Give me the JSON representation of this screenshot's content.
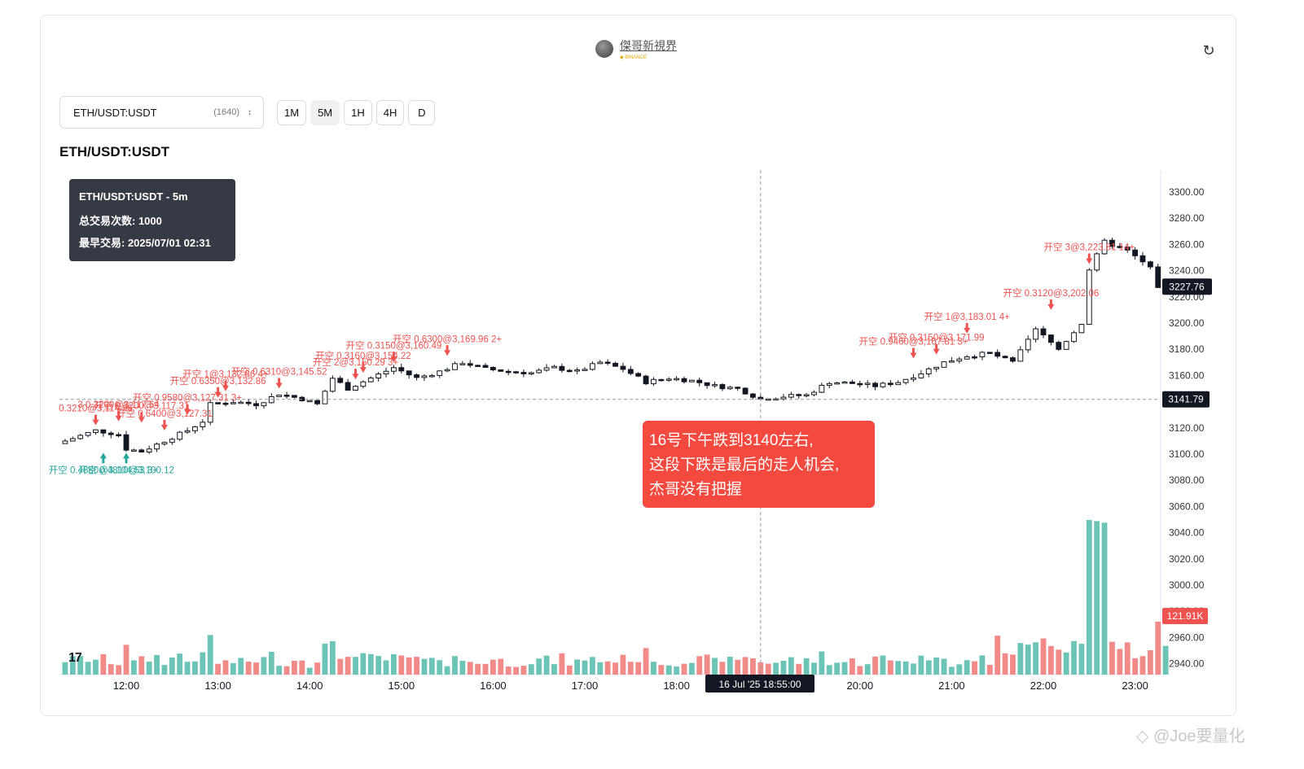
{
  "author": {
    "name": "傑哥新視界",
    "sub": "◆ BINANCE"
  },
  "refresh_icon": "refresh-icon",
  "symbol_select": {
    "value": "ETH/USDT:USDT",
    "count": "(1640)"
  },
  "timeframes": [
    {
      "label": "1M",
      "active": false
    },
    {
      "label": "5M",
      "active": true
    },
    {
      "label": "1H",
      "active": false
    },
    {
      "label": "4H",
      "active": false
    },
    {
      "label": "D",
      "active": false
    }
  ],
  "title": "ETH/USDT:USDT",
  "info_box": {
    "line1": "ETH/USDT:USDT - 5m",
    "line2": "总交易次数: 1000",
    "line3": "最早交易: 2025/07/01 02:31"
  },
  "annotation": "16号下午跌到3140左右,\n这段下跌是最后的走人机会,\n杰哥没有把握",
  "watermark": "◇ @Joe要量化",
  "tv_logo": "17",
  "colors": {
    "up": "#26a69a",
    "down": "#ef5350",
    "vol_up": "#6cc4b6",
    "vol_down": "#f28b87",
    "candle_up": "#ffffff",
    "candle_down": "#131722"
  },
  "chart_data": {
    "type": "candlestick",
    "y_ticks": [
      "3300.00",
      "3280.00",
      "3260.00",
      "3240.00",
      "3220.00",
      "3200.00",
      "3180.00",
      "3160.00",
      "3140.00",
      "3120.00",
      "3100.00",
      "3080.00",
      "3060.00",
      "3040.00",
      "3020.00",
      "3000.00",
      "2980.00",
      "2960.00",
      "2940.00"
    ],
    "ylim": [
      2935,
      3310
    ],
    "x_ticks": [
      "12:00",
      "13:00",
      "14:00",
      "15:00",
      "16:00",
      "17:00",
      "18:00",
      "19:00",
      "20:00",
      "21:00",
      "22:00",
      "23:00"
    ],
    "crosshair": {
      "time_label": "16 Jul '25   18:55:00",
      "price_label": "3141.79",
      "price": 3141.79
    },
    "last_price": {
      "label": "3227.76",
      "price": 3227.76
    },
    "volume_label": "121.91K",
    "volume_max": 190,
    "price_path": [
      [
        "11:20",
        3108
      ],
      [
        "11:30",
        3112
      ],
      [
        "11:45",
        3118
      ],
      [
        "12:00",
        3115
      ],
      [
        "12:05",
        3104
      ],
      [
        "12:15",
        3102
      ],
      [
        "12:30",
        3110
      ],
      [
        "12:45",
        3118
      ],
      [
        "12:55",
        3125
      ],
      [
        "13:00",
        3138
      ],
      [
        "13:15",
        3140
      ],
      [
        "13:30",
        3138
      ],
      [
        "13:45",
        3146
      ],
      [
        "14:00",
        3142
      ],
      [
        "14:10",
        3138
      ],
      [
        "14:20",
        3158
      ],
      [
        "14:30",
        3150
      ],
      [
        "14:45",
        3158
      ],
      [
        "15:00",
        3166
      ],
      [
        "15:15",
        3158
      ],
      [
        "15:30",
        3163
      ],
      [
        "15:45",
        3170
      ],
      [
        "16:00",
        3165
      ],
      [
        "16:15",
        3163
      ],
      [
        "16:30",
        3162
      ],
      [
        "16:45",
        3166
      ],
      [
        "17:00",
        3163
      ],
      [
        "17:15",
        3170
      ],
      [
        "17:30",
        3165
      ],
      [
        "17:45",
        3155
      ],
      [
        "18:00",
        3158
      ],
      [
        "18:15",
        3156
      ],
      [
        "18:30",
        3152
      ],
      [
        "18:45",
        3150
      ],
      [
        "19:00",
        3142
      ],
      [
        "19:15",
        3144
      ],
      [
        "19:30",
        3145
      ],
      [
        "19:45",
        3155
      ],
      [
        "20:00",
        3154
      ],
      [
        "20:15",
        3152
      ],
      [
        "20:30",
        3155
      ],
      [
        "20:45",
        3162
      ],
      [
        "21:00",
        3170
      ],
      [
        "21:15",
        3175
      ],
      [
        "21:30",
        3177
      ],
      [
        "21:45",
        3170
      ],
      [
        "22:00",
        3195
      ],
      [
        "22:15",
        3180
      ],
      [
        "22:30",
        3200
      ],
      [
        "22:35",
        3241
      ],
      [
        "22:45",
        3262
      ],
      [
        "23:00",
        3255
      ],
      [
        "23:15",
        3242
      ],
      [
        "23:20",
        3228
      ]
    ],
    "trade_markers": [
      {
        "time": "11:40",
        "price": 3122,
        "side": "sell",
        "label": "0.3210@3,114.96"
      },
      {
        "time": "11:55",
        "price": 3125,
        "side": "sell",
        "label": "3 0.3200@3,117.64"
      },
      {
        "time": "12:10",
        "price": 3124,
        "side": "sell",
        "label": "开空 0.3200@3,117.31"
      },
      {
        "time": "12:25",
        "price": 3118,
        "side": "sell",
        "label": "开空 0.6400@3,127.31"
      },
      {
        "time": "12:40",
        "price": 3130,
        "side": "sell",
        "label": "开空 0.9580@3,127.31 3+"
      },
      {
        "time": "13:00",
        "price": 3143,
        "side": "sell",
        "label": "开空 0.6350@3,132.86"
      },
      {
        "time": "13:05",
        "price": 3148,
        "side": "sell",
        "label": "开空 1@3,132.86 4+"
      },
      {
        "time": "13:40",
        "price": 3150,
        "side": "sell",
        "label": "开空 0.6310@3,145.52"
      },
      {
        "time": "14:30",
        "price": 3157,
        "side": "sell",
        "label": "开空 2@3,150.29 3+"
      },
      {
        "time": "14:35",
        "price": 3162,
        "side": "sell",
        "label": "开空 0.3160@3,154.22"
      },
      {
        "time": "14:55",
        "price": 3170,
        "side": "sell",
        "label": "开空 0.3150@3,160.49"
      },
      {
        "time": "15:30",
        "price": 3175,
        "side": "sell",
        "label": "开空 0.6300@3,169.96 2+"
      },
      {
        "time": "20:35",
        "price": 3173,
        "side": "sell",
        "label": "开空 0.9460@3,167.81 3+"
      },
      {
        "time": "20:50",
        "price": 3176,
        "side": "sell",
        "label": "开空 0.3150@3,171.99"
      },
      {
        "time": "21:10",
        "price": 3192,
        "side": "sell",
        "label": "开空 1@3,183.01 4+"
      },
      {
        "time": "22:05",
        "price": 3210,
        "side": "sell",
        "label": "开空 0.3120@3,202.06"
      },
      {
        "time": "22:30",
        "price": 3245,
        "side": "sell",
        "label": "开空 3@3,223.81 14+"
      },
      {
        "time": "11:45",
        "price": 3101,
        "side": "buy",
        "label": "开空 0.4880@3,104.53 3+"
      },
      {
        "time": "12:00",
        "price": 3101,
        "side": "buy",
        "label": "开空 0.4810@3,100.12"
      }
    ]
  }
}
